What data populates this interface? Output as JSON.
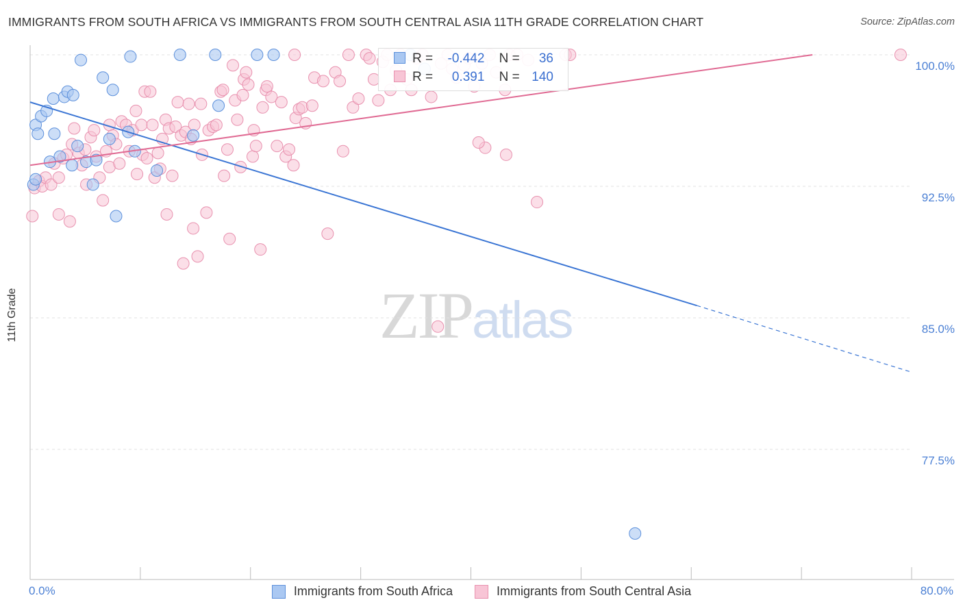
{
  "header": {
    "title": "IMMIGRANTS FROM SOUTH AFRICA VS IMMIGRANTS FROM SOUTH CENTRAL ASIA 11TH GRADE CORRELATION CHART",
    "source": "Source: ZipAtlas.com"
  },
  "watermark": {
    "zip": "ZIP",
    "atlas": "atlas"
  },
  "legend": {
    "r_label": "R =",
    "n_label": "N =",
    "rows": [
      {
        "r": "-0.442",
        "n": "36"
      },
      {
        "r": "0.391",
        "n": "140"
      }
    ]
  },
  "colors": {
    "south_africa_fill": "#aac8f2",
    "south_africa_stroke": "#5b8fdb",
    "south_africa_line": "#3a75d4",
    "south_central_asia_fill": "#f8c5d6",
    "south_central_asia_stroke": "#e890ae",
    "south_central_asia_line": "#e06a93",
    "tick_label": "#4a7fd4"
  },
  "chart_data": {
    "type": "scatter",
    "title": "IMMIGRANTS FROM SOUTH AFRICA VS IMMIGRANTS FROM SOUTH CENTRAL ASIA 11TH GRADE CORRELATION CHART",
    "xlabel": "",
    "ylabel": "11th Grade",
    "xlim": [
      0,
      80
    ],
    "ylim": [
      71.5,
      101.5
    ],
    "x_tick_labels": [
      "0.0%",
      "80.0%"
    ],
    "y_ticks": [
      {
        "value": 100.0,
        "label": "100.0%"
      },
      {
        "value": 92.5,
        "label": "92.5%"
      },
      {
        "value": 85.0,
        "label": "85.0%"
      },
      {
        "value": 77.5,
        "label": "77.5%"
      }
    ],
    "grid": true,
    "legend_position": "top-center",
    "series": [
      {
        "name": "Immigrants from South Africa",
        "r": -0.442,
        "n": 36,
        "trend": {
          "x0": 0,
          "y0": 97.3,
          "x1": 60.5,
          "y1": 85.7,
          "dash_to_x": 80,
          "dash_to_y": 81.9
        },
        "points": [
          [
            0.3,
            92.6
          ],
          [
            0.5,
            92.9
          ],
          [
            0.5,
            96.0
          ],
          [
            0.7,
            95.5
          ],
          [
            1.0,
            96.5
          ],
          [
            1.5,
            96.8
          ],
          [
            1.8,
            93.9
          ],
          [
            2.1,
            97.5
          ],
          [
            2.2,
            95.5
          ],
          [
            2.7,
            94.2
          ],
          [
            3.1,
            97.6
          ],
          [
            3.4,
            97.9
          ],
          [
            3.8,
            93.7
          ],
          [
            3.9,
            97.7
          ],
          [
            4.3,
            94.8
          ],
          [
            4.6,
            99.7
          ],
          [
            5.1,
            93.9
          ],
          [
            5.7,
            92.6
          ],
          [
            6.0,
            94.0
          ],
          [
            6.6,
            98.7
          ],
          [
            7.2,
            95.2
          ],
          [
            7.5,
            98.0
          ],
          [
            7.8,
            90.8
          ],
          [
            8.9,
            95.6
          ],
          [
            9.1,
            99.9
          ],
          [
            9.5,
            94.5
          ],
          [
            11.5,
            93.4
          ],
          [
            13.6,
            100.0
          ],
          [
            14.8,
            95.4
          ],
          [
            16.8,
            100.0
          ],
          [
            17.1,
            97.1
          ],
          [
            20.6,
            100.0
          ],
          [
            22.1,
            100.0
          ],
          [
            34.5,
            100.0
          ],
          [
            35.8,
            99.2
          ],
          [
            54.9,
            72.7
          ]
        ]
      },
      {
        "name": "Immigrants from South Central Asia",
        "r": 0.391,
        "n": 140,
        "trend": {
          "x0": 0,
          "y0": 93.7,
          "x1": 71.0,
          "y1": 100.0
        },
        "points": [
          [
            0.2,
            90.8
          ],
          [
            0.4,
            92.4
          ],
          [
            0.8,
            92.8
          ],
          [
            1.1,
            92.5
          ],
          [
            1.4,
            93.0
          ],
          [
            1.9,
            92.6
          ],
          [
            2.2,
            93.8
          ],
          [
            2.6,
            93.0
          ],
          [
            2.6,
            90.9
          ],
          [
            3.0,
            94.1
          ],
          [
            3.3,
            94.3
          ],
          [
            3.6,
            90.5
          ],
          [
            3.8,
            94.9
          ],
          [
            4.0,
            95.8
          ],
          [
            4.4,
            94.4
          ],
          [
            4.7,
            93.7
          ],
          [
            5.0,
            94.6
          ],
          [
            5.1,
            92.6
          ],
          [
            5.5,
            95.3
          ],
          [
            5.8,
            95.7
          ],
          [
            6.0,
            94.2
          ],
          [
            6.3,
            93.0
          ],
          [
            6.6,
            91.7
          ],
          [
            6.9,
            94.5
          ],
          [
            7.2,
            96.0
          ],
          [
            7.2,
            93.6
          ],
          [
            7.5,
            95.4
          ],
          [
            7.8,
            94.9
          ],
          [
            8.1,
            93.8
          ],
          [
            8.3,
            96.2
          ],
          [
            8.7,
            96.0
          ],
          [
            9.0,
            94.5
          ],
          [
            9.3,
            95.7
          ],
          [
            9.6,
            96.8
          ],
          [
            9.7,
            93.2
          ],
          [
            10.1,
            96.0
          ],
          [
            10.2,
            94.3
          ],
          [
            10.4,
            97.9
          ],
          [
            10.6,
            94.1
          ],
          [
            10.9,
            97.9
          ],
          [
            11.1,
            96.0
          ],
          [
            11.3,
            93.0
          ],
          [
            11.6,
            94.4
          ],
          [
            11.8,
            93.5
          ],
          [
            12.0,
            95.2
          ],
          [
            12.3,
            96.3
          ],
          [
            12.4,
            90.9
          ],
          [
            12.6,
            95.8
          ],
          [
            12.9,
            93.1
          ],
          [
            13.2,
            95.9
          ],
          [
            13.4,
            97.3
          ],
          [
            13.7,
            95.4
          ],
          [
            13.9,
            88.1
          ],
          [
            14.1,
            95.6
          ],
          [
            14.4,
            97.2
          ],
          [
            14.6,
            95.2
          ],
          [
            14.8,
            90.1
          ],
          [
            14.9,
            96.0
          ],
          [
            15.2,
            88.5
          ],
          [
            15.5,
            97.2
          ],
          [
            15.6,
            94.3
          ],
          [
            16.0,
            91.0
          ],
          [
            16.2,
            95.7
          ],
          [
            16.6,
            95.9
          ],
          [
            16.9,
            96.0
          ],
          [
            17.3,
            97.9
          ],
          [
            17.5,
            98.0
          ],
          [
            17.6,
            93.1
          ],
          [
            17.9,
            94.6
          ],
          [
            18.1,
            89.5
          ],
          [
            18.4,
            99.4
          ],
          [
            18.6,
            97.4
          ],
          [
            18.8,
            96.3
          ],
          [
            19.1,
            93.6
          ],
          [
            19.3,
            97.7
          ],
          [
            19.4,
            98.6
          ],
          [
            19.6,
            99.0
          ],
          [
            19.8,
            98.3
          ],
          [
            20.2,
            94.2
          ],
          [
            20.3,
            95.7
          ],
          [
            20.5,
            94.8
          ],
          [
            20.9,
            88.9
          ],
          [
            21.1,
            97.0
          ],
          [
            21.4,
            98.0
          ],
          [
            21.5,
            98.2
          ],
          [
            21.9,
            97.6
          ],
          [
            22.4,
            94.8
          ],
          [
            22.8,
            97.3
          ],
          [
            23.2,
            94.2
          ],
          [
            23.5,
            94.6
          ],
          [
            23.9,
            93.7
          ],
          [
            24.0,
            100.0
          ],
          [
            24.1,
            96.4
          ],
          [
            24.4,
            96.9
          ],
          [
            24.7,
            97.0
          ],
          [
            25.0,
            96.1
          ],
          [
            25.6,
            97.1
          ],
          [
            25.8,
            98.7
          ],
          [
            26.6,
            98.5
          ],
          [
            27.0,
            89.8
          ],
          [
            27.7,
            99.0
          ],
          [
            28.1,
            98.5
          ],
          [
            28.4,
            94.5
          ],
          [
            28.9,
            100.0
          ],
          [
            29.3,
            97.0
          ],
          [
            29.8,
            97.5
          ],
          [
            30.5,
            100.0
          ],
          [
            30.8,
            99.8
          ],
          [
            31.2,
            98.6
          ],
          [
            31.6,
            97.4
          ],
          [
            32.0,
            99.6
          ],
          [
            32.4,
            100.0
          ],
          [
            32.7,
            98.0
          ],
          [
            33.2,
            99.1
          ],
          [
            33.6,
            100.0
          ],
          [
            34.2,
            98.6
          ],
          [
            34.6,
            98.0
          ],
          [
            35.1,
            99.8
          ],
          [
            35.6,
            100.0
          ],
          [
            36.4,
            97.6
          ],
          [
            37.3,
            99.5
          ],
          [
            37.9,
            100.0
          ],
          [
            38.3,
            99.2
          ],
          [
            38.7,
            98.7
          ],
          [
            39.4,
            99.4
          ],
          [
            39.8,
            99.8
          ],
          [
            40.3,
            98.2
          ],
          [
            41.0,
            99.5
          ],
          [
            41.7,
            100.0
          ],
          [
            42.3,
            99.0
          ],
          [
            43.1,
            98.0
          ],
          [
            43.5,
            100.0
          ],
          [
            44.2,
            100.0
          ],
          [
            45.2,
            99.7
          ],
          [
            46.0,
            91.6
          ],
          [
            48.6,
            100.0
          ],
          [
            49.0,
            100.0
          ],
          [
            41.3,
            94.7
          ],
          [
            40.7,
            95.0
          ],
          [
            43.2,
            94.3
          ],
          [
            37.0,
            84.5
          ],
          [
            79.0,
            100.0
          ]
        ]
      }
    ]
  },
  "bottom_legend": [
    {
      "label": "Immigrants from South Africa"
    },
    {
      "label": "Immigrants from South Central Asia"
    }
  ],
  "axis": {
    "y_title": "11th Grade",
    "x_min_label": "0.0%",
    "x_max_label": "80.0%"
  }
}
